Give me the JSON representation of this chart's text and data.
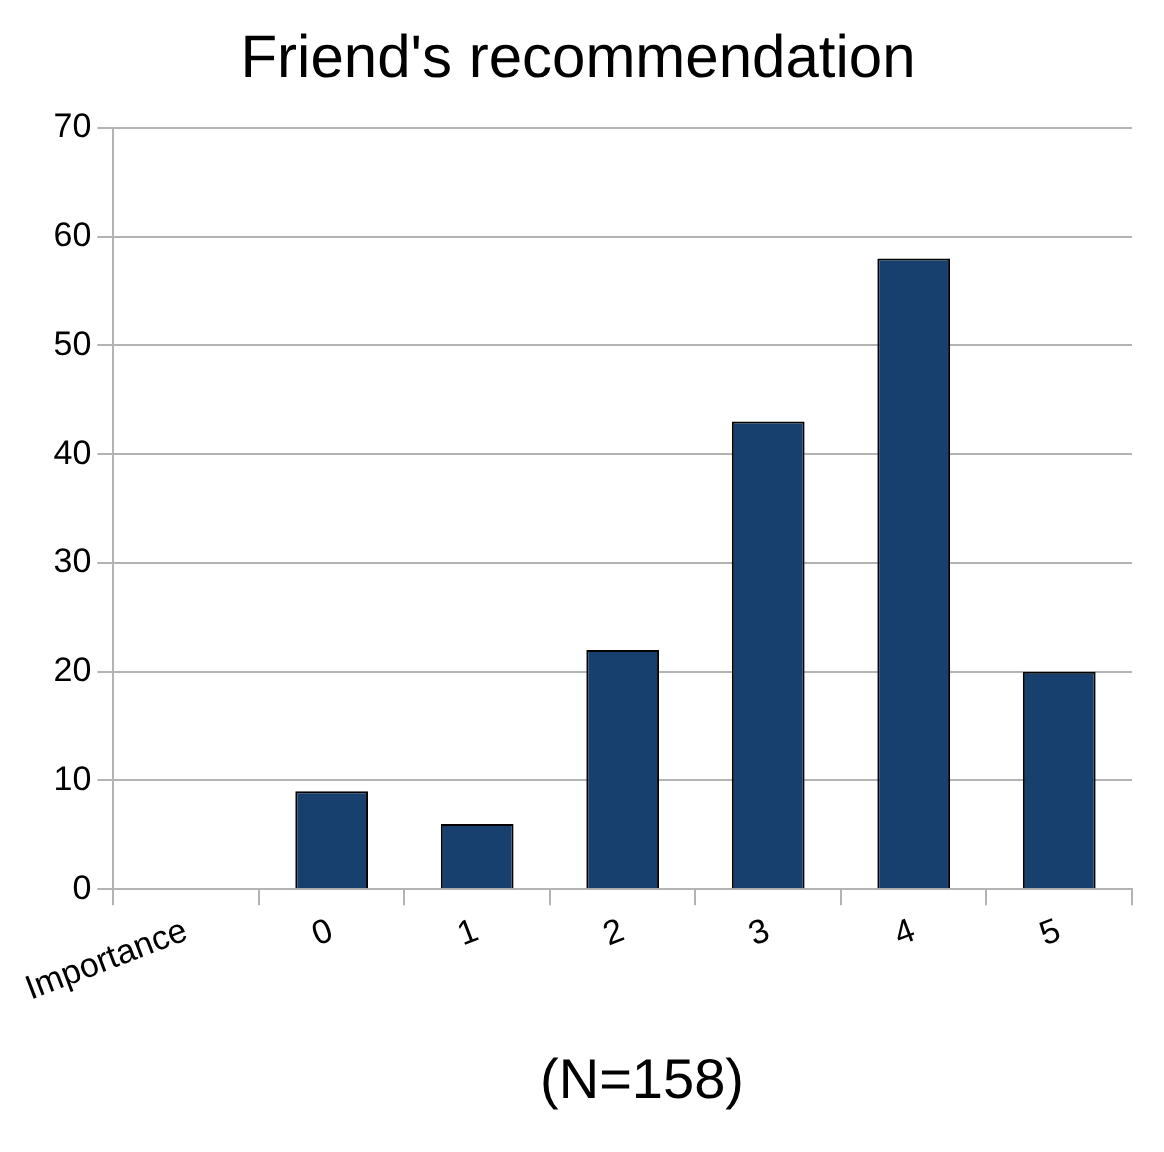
{
  "chart_data": {
    "type": "bar",
    "title": "Friend's recommendation",
    "categories": [
      "Importance",
      "0",
      "1",
      "2",
      "3",
      "4",
      "5"
    ],
    "values": [
      null,
      9,
      6,
      22,
      43,
      58,
      20
    ],
    "color": "#17406f",
    "ylim": [
      0,
      70
    ],
    "yticks": [
      0,
      10,
      20,
      30,
      40,
      50,
      60,
      70
    ],
    "grid": "y",
    "legend": false,
    "annotations": [
      "(N=158)"
    ]
  }
}
